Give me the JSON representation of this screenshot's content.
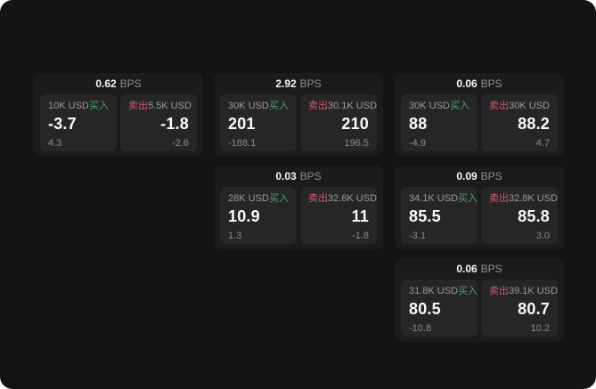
{
  "colors": {
    "background": "#141414",
    "card_background": "#1B1B1B",
    "panel_background": "#262626",
    "buy_green": "#4AA663",
    "sell_red": "#D15A68",
    "value_white": "#F5F5F5",
    "label_gray": "#9B9B9B",
    "sub_gray": "#8A8A8A"
  },
  "cards": [
    {
      "bps_value": "0.62",
      "bps_unit": "BPS",
      "buy": {
        "amount": "10K USD",
        "side_label": "买入",
        "value": "-3.7",
        "sub_value": "4.3"
      },
      "sell": {
        "side_label": "卖出",
        "amount": "5.5K USD",
        "value": "-1.8",
        "sub_value": "-2.6"
      }
    },
    {
      "bps_value": "2.92",
      "bps_unit": "BPS",
      "buy": {
        "amount": "30K USD",
        "side_label": "买入",
        "value": "201",
        "sub_value": "-188.1"
      },
      "sell": {
        "side_label": "卖出",
        "amount": "30.1K USD",
        "value": "210",
        "sub_value": "196.5"
      }
    },
    {
      "bps_value": "0.06",
      "bps_unit": "BPS",
      "buy": {
        "amount": "30K USD",
        "side_label": "买入",
        "value": "88",
        "sub_value": "-4.9"
      },
      "sell": {
        "side_label": "卖出",
        "amount": "30K USD",
        "value": "88.2",
        "sub_value": "4.7"
      }
    },
    {
      "bps_value": "0.03",
      "bps_unit": "BPS",
      "buy": {
        "amount": "28K USD",
        "side_label": "买入",
        "value": "10.9",
        "sub_value": "1.3"
      },
      "sell": {
        "side_label": "卖出",
        "amount": "32.6K USD",
        "value": "11",
        "sub_value": "-1.8"
      }
    },
    {
      "bps_value": "0.09",
      "bps_unit": "BPS",
      "buy": {
        "amount": "34.1K USD",
        "side_label": "买入",
        "value": "85.5",
        "sub_value": "-3.1"
      },
      "sell": {
        "side_label": "卖出",
        "amount": "32.8K USD",
        "value": "85.8",
        "sub_value": "3.0"
      }
    },
    {
      "bps_value": "0.06",
      "bps_unit": "BPS",
      "buy": {
        "amount": "31.8K USD",
        "side_label": "买入",
        "value": "80.5",
        "sub_value": "-10.8"
      },
      "sell": {
        "side_label": "卖出",
        "amount": "39.1K USD",
        "value": "80.7",
        "sub_value": "10.2"
      }
    }
  ]
}
